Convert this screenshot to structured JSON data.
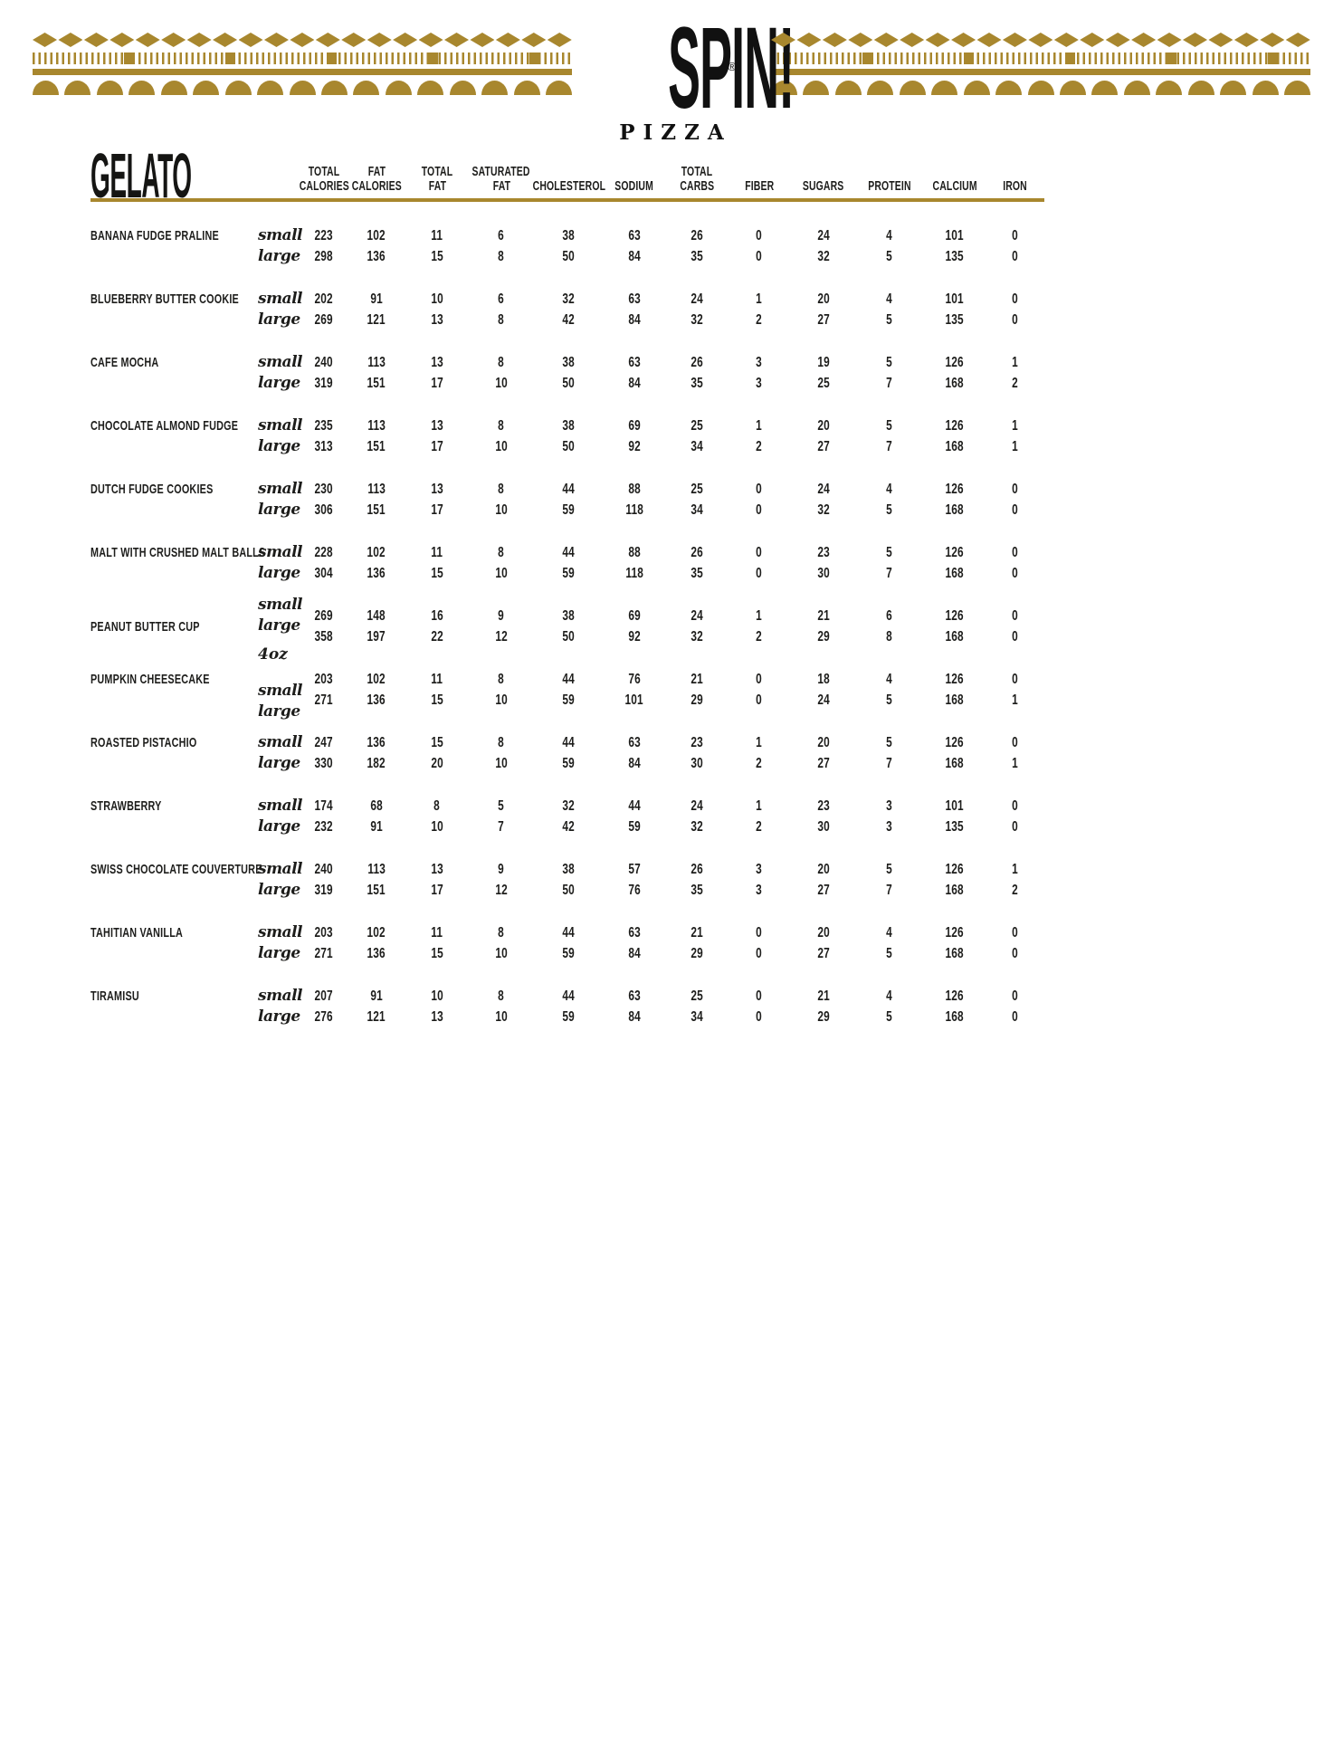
{
  "brand": {
    "name": "SPIN!",
    "sub": "PIZZA",
    "registered": "®"
  },
  "page_title": "GELATO",
  "colors": {
    "gold": "#a8872e",
    "ink": "#1d1d1b"
  },
  "ornaments": {
    "diamonds": 21,
    "arcs": 17
  },
  "table": {
    "columns": [
      {
        "lines": [
          "TOTAL",
          "CALORIES"
        ]
      },
      {
        "lines": [
          "FAT",
          "CALORIES"
        ]
      },
      {
        "lines": [
          "TOTAL",
          "FAT"
        ]
      },
      {
        "lines": [
          "SATURATED",
          "FAT"
        ]
      },
      {
        "lines": [
          "CHOLESTEROL"
        ]
      },
      {
        "lines": [
          "SODIUM"
        ]
      },
      {
        "lines": [
          "TOTAL",
          "CARBS"
        ]
      },
      {
        "lines": [
          "FIBER"
        ]
      },
      {
        "lines": [
          "SUGARS"
        ]
      },
      {
        "lines": [
          "PROTEIN"
        ]
      },
      {
        "lines": [
          "CALCIUM"
        ]
      },
      {
        "lines": [
          "IRON"
        ]
      }
    ],
    "rows": [
      {
        "name": "BANANA FUDGE PRALINE",
        "sizes": [
          "small",
          "large"
        ],
        "values": [
          [
            223,
            102,
            11,
            6,
            38,
            63,
            26,
            0,
            24,
            4,
            101,
            0
          ],
          [
            298,
            136,
            15,
            8,
            50,
            84,
            35,
            0,
            32,
            5,
            135,
            0
          ]
        ]
      },
      {
        "name": "BLUEBERRY BUTTER COOKIE",
        "sizes": [
          "small",
          "large"
        ],
        "values": [
          [
            202,
            91,
            10,
            6,
            32,
            63,
            24,
            1,
            20,
            4,
            101,
            0
          ],
          [
            269,
            121,
            13,
            8,
            42,
            84,
            32,
            2,
            27,
            5,
            135,
            0
          ]
        ]
      },
      {
        "name": "CAFE MOCHA",
        "sizes": [
          "small",
          "large"
        ],
        "values": [
          [
            240,
            113,
            13,
            8,
            38,
            63,
            26,
            3,
            19,
            5,
            126,
            1
          ],
          [
            319,
            151,
            17,
            10,
            50,
            84,
            35,
            3,
            25,
            7,
            168,
            2
          ]
        ]
      },
      {
        "name": "CHOCOLATE ALMOND FUDGE",
        "sizes": [
          "small",
          "large"
        ],
        "values": [
          [
            235,
            113,
            13,
            8,
            38,
            69,
            25,
            1,
            20,
            5,
            126,
            1
          ],
          [
            313,
            151,
            17,
            10,
            50,
            92,
            34,
            2,
            27,
            7,
            168,
            1
          ]
        ]
      },
      {
        "name": "DUTCH FUDGE COOKIES",
        "sizes": [
          "small",
          "large"
        ],
        "values": [
          [
            230,
            113,
            13,
            8,
            44,
            88,
            25,
            0,
            24,
            4,
            126,
            0
          ],
          [
            306,
            151,
            17,
            10,
            59,
            118,
            34,
            0,
            32,
            5,
            168,
            0
          ]
        ]
      },
      {
        "name": "MALT WITH CRUSHED MALT BALLS",
        "sizes": [
          "small",
          "large"
        ],
        "values": [
          [
            228,
            102,
            11,
            8,
            44,
            88,
            26,
            0,
            23,
            5,
            126,
            0
          ],
          [
            304,
            136,
            15,
            10,
            59,
            118,
            35,
            0,
            30,
            7,
            168,
            0
          ]
        ]
      },
      {
        "name": "PEANUT BUTTER CUP",
        "sizes": [
          "small",
          "large"
        ],
        "variant": "up",
        "values": [
          [
            269,
            148,
            16,
            9,
            38,
            69,
            24,
            1,
            21,
            6,
            126,
            0
          ],
          [
            358,
            197,
            22,
            12,
            50,
            92,
            32,
            2,
            29,
            8,
            168,
            0
          ]
        ]
      },
      {
        "name": "PUMPKIN CHEESECAKE",
        "sizes": [
          "small",
          "large"
        ],
        "variant": "down",
        "note": "4oz",
        "values": [
          [
            203,
            102,
            11,
            8,
            44,
            76,
            21,
            0,
            18,
            4,
            126,
            0
          ],
          [
            271,
            136,
            15,
            10,
            59,
            101,
            29,
            0,
            24,
            5,
            168,
            1
          ]
        ]
      },
      {
        "name": "ROASTED PISTACHIO",
        "sizes": [
          "small",
          "large"
        ],
        "values": [
          [
            247,
            136,
            15,
            8,
            44,
            63,
            23,
            1,
            20,
            5,
            126,
            0
          ],
          [
            330,
            182,
            20,
            10,
            59,
            84,
            30,
            2,
            27,
            7,
            168,
            1
          ]
        ]
      },
      {
        "name": "STRAWBERRY",
        "sizes": [
          "small",
          "large"
        ],
        "values": [
          [
            174,
            68,
            8,
            5,
            32,
            44,
            24,
            1,
            23,
            3,
            101,
            0
          ],
          [
            232,
            91,
            10,
            7,
            42,
            59,
            32,
            2,
            30,
            3,
            135,
            0
          ]
        ]
      },
      {
        "name": "SWISS CHOCOLATE COUVERTURE",
        "sizes": [
          "small",
          "large"
        ],
        "values": [
          [
            240,
            113,
            13,
            9,
            38,
            57,
            26,
            3,
            20,
            5,
            126,
            1
          ],
          [
            319,
            151,
            17,
            12,
            50,
            76,
            35,
            3,
            27,
            7,
            168,
            2
          ]
        ]
      },
      {
        "name": "TAHITIAN VANILLA",
        "sizes": [
          "small",
          "large"
        ],
        "values": [
          [
            203,
            102,
            11,
            8,
            44,
            63,
            21,
            0,
            20,
            4,
            126,
            0
          ],
          [
            271,
            136,
            15,
            10,
            59,
            84,
            29,
            0,
            27,
            5,
            168,
            0
          ]
        ]
      },
      {
        "name": "TIRAMISU",
        "sizes": [
          "small",
          "large"
        ],
        "values": [
          [
            207,
            91,
            10,
            8,
            44,
            63,
            25,
            0,
            21,
            4,
            126,
            0
          ],
          [
            276,
            121,
            13,
            10,
            59,
            84,
            34,
            0,
            29,
            5,
            168,
            0
          ]
        ]
      }
    ]
  }
}
